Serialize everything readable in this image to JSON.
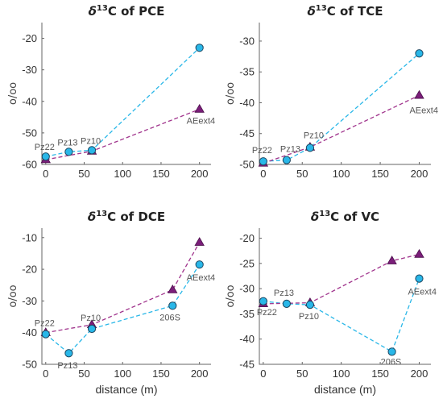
{
  "colors": {
    "cyan_line": "#29b7e8",
    "cyan_fill": "#29b7e8",
    "purple_line": "#a0338c",
    "purple_fill": "#7b1e7a",
    "marker_edge": "#1c4660"
  },
  "chart_data": [
    {
      "type": "line",
      "title_prefix": "δ",
      "title_sup": "13",
      "title_rest": "C of PCE",
      "ylabel": "o/oo",
      "xlabel": "",
      "xlim": [
        -5,
        215
      ],
      "ylim": [
        -60,
        -15
      ],
      "xticks": [
        0,
        50,
        100,
        150,
        200
      ],
      "yticks": [
        -60,
        -50,
        -40,
        -30,
        -20
      ],
      "series": [
        {
          "marker": "circle",
          "color": "cyan",
          "points": [
            [
              0,
              -57.5
            ],
            [
              30,
              -56
            ],
            [
              60,
              -55.5
            ],
            [
              200,
              -23
            ]
          ]
        },
        {
          "marker": "triangle",
          "color": "purple",
          "points": [
            [
              0,
              -58.5
            ],
            [
              60,
              -55.8
            ],
            [
              200,
              -42.5
            ]
          ]
        }
      ],
      "annotations": [
        {
          "text": "Pz22",
          "x": 0,
          "y": -57.5
        },
        {
          "text": "Pz13",
          "x": 30,
          "y": -56
        },
        {
          "text": "Pz10",
          "x": 60,
          "y": -55.5
        },
        {
          "text": "AEext4",
          "x": 200,
          "y": -42.5
        }
      ]
    },
    {
      "type": "line",
      "title_prefix": "δ",
      "title_sup": "13",
      "title_rest": "C of TCE",
      "ylabel": "o/oo",
      "xlabel": "",
      "xlim": [
        -5,
        215
      ],
      "ylim": [
        -50,
        -27
      ],
      "xticks": [
        0,
        50,
        100,
        150,
        200
      ],
      "yticks": [
        -50,
        -45,
        -40,
        -35,
        -30
      ],
      "series": [
        {
          "marker": "circle",
          "color": "cyan",
          "points": [
            [
              0,
              -49.5
            ],
            [
              30,
              -49.3
            ],
            [
              60,
              -47.3
            ],
            [
              200,
              -32
            ]
          ]
        },
        {
          "marker": "triangle",
          "color": "purple",
          "points": [
            [
              0,
              -49.8
            ],
            [
              60,
              -47.2
            ],
            [
              200,
              -38.8
            ]
          ]
        }
      ],
      "annotations": [
        {
          "text": "Pz22",
          "x": 0,
          "y": -49.5
        },
        {
          "text": "Pz13",
          "x": 30,
          "y": -49.3
        },
        {
          "text": "Pz10",
          "x": 60,
          "y": -47.3
        },
        {
          "text": "AEext4",
          "x": 200,
          "y": -38.8
        }
      ]
    },
    {
      "type": "line",
      "title_prefix": "δ",
      "title_sup": "13",
      "title_rest": "C of DCE",
      "ylabel": "o/oo",
      "xlabel": "distance (m)",
      "xlim": [
        -5,
        215
      ],
      "ylim": [
        -50,
        -7
      ],
      "xticks": [
        0,
        50,
        100,
        150,
        200
      ],
      "yticks": [
        -50,
        -40,
        -30,
        -20,
        -10
      ],
      "series": [
        {
          "marker": "circle",
          "color": "cyan",
          "points": [
            [
              0,
              -40.5
            ],
            [
              30,
              -46.5
            ],
            [
              60,
              -38.8
            ],
            [
              165,
              -31.5
            ],
            [
              200,
              -18.5
            ]
          ]
        },
        {
          "marker": "triangle",
          "color": "purple",
          "points": [
            [
              0,
              -40
            ],
            [
              60,
              -37.5
            ],
            [
              165,
              -26.5
            ],
            [
              200,
              -11.5
            ]
          ]
        }
      ],
      "annotations": [
        {
          "text": "Pz22",
          "x": 0,
          "y": -40.5
        },
        {
          "text": "Pz13",
          "x": 30,
          "y": -46.5
        },
        {
          "text": "Pz10",
          "x": 60,
          "y": -38.8
        },
        {
          "text": "206S",
          "x": 165,
          "y": -31.5
        },
        {
          "text": "AEext4",
          "x": 200,
          "y": -18.5
        }
      ]
    },
    {
      "type": "line",
      "title_prefix": "δ",
      "title_sup": "13",
      "title_rest": "C of VC",
      "ylabel": "o/oo",
      "xlabel": "distance (m)",
      "xlim": [
        -5,
        215
      ],
      "ylim": [
        -45,
        -18
      ],
      "xticks": [
        0,
        50,
        100,
        150,
        200
      ],
      "yticks": [
        -45,
        -40,
        -35,
        -30,
        -25,
        -20
      ],
      "series": [
        {
          "marker": "circle",
          "color": "cyan",
          "points": [
            [
              0,
              -32.5
            ],
            [
              30,
              -33
            ],
            [
              60,
              -33.2
            ],
            [
              165,
              -42.5
            ],
            [
              200,
              -28
            ]
          ]
        },
        {
          "marker": "triangle",
          "color": "purple",
          "points": [
            [
              0,
              -33
            ],
            [
              60,
              -32.8
            ],
            [
              165,
              -24.5
            ],
            [
              200,
              -23.2
            ]
          ]
        }
      ],
      "annotations": [
        {
          "text": "Pz22",
          "x": 0,
          "y": -32.5
        },
        {
          "text": "Pz13",
          "x": 30,
          "y": -33
        },
        {
          "text": "Pz10",
          "x": 60,
          "y": -33.2
        },
        {
          "text": "206S",
          "x": 165,
          "y": -42.5
        },
        {
          "text": "AEext4",
          "x": 200,
          "y": -28
        }
      ]
    }
  ]
}
